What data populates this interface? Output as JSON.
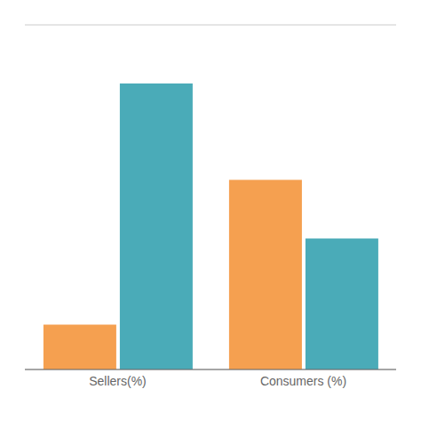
{
  "chart_data": {
    "type": "bar",
    "categories": [
      "Sellers(%)",
      "Consumers (%)"
    ],
    "series": [
      {
        "color": "#F5A050",
        "values": [
          13,
          55
        ]
      },
      {
        "color": "#4AABB8",
        "values": [
          83,
          38
        ]
      }
    ],
    "ylim": [
      0,
      100
    ],
    "yticks": [
      0,
      10,
      20,
      30,
      40,
      50,
      60,
      70,
      80,
      90,
      100
    ],
    "grid": true,
    "tick_labels": "x"
  }
}
